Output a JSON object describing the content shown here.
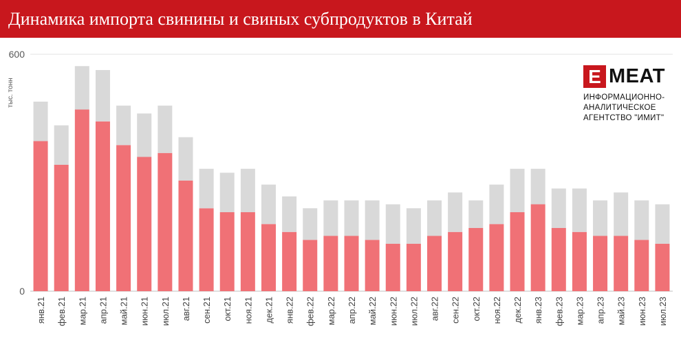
{
  "header": {
    "title": "Динамика импорта свинины и свиных субпродуктов в Китай"
  },
  "logo": {
    "mark": "E",
    "word": "MEAT",
    "lines": [
      "ИНФОРМАЦИОННО-",
      "АНАЛИТИЧЕСКОЕ",
      "АГЕНТСТВО \"ИМИТ\""
    ]
  },
  "colors": {
    "accent": "#c8171d",
    "pork": "#f07176",
    "offal": "#d9d9d9"
  },
  "chart_data": {
    "type": "bar",
    "stacked": true,
    "ylabel": "тыс. тонн",
    "ylim": [
      0,
      600
    ],
    "yticks": [
      0,
      600
    ],
    "grid": true,
    "categories": [
      "янв.21",
      "фев.21",
      "мар.21",
      "апр.21",
      "май.21",
      "июн.21",
      "июл.21",
      "авг.21",
      "сен.21",
      "окт.21",
      "ноя.21",
      "дек.21",
      "янв.22",
      "фев.22",
      "мар.22",
      "апр.22",
      "май.22",
      "июн.22",
      "июл.22",
      "авг.22",
      "сен.22",
      "окт.22",
      "ноя.22",
      "дек.22",
      "янв.23",
      "фев.23",
      "мар.23",
      "апр.23",
      "май.23",
      "июн.23",
      "июл.23"
    ],
    "series": [
      {
        "values": [
          380,
          320,
          460,
          430,
          370,
          340,
          350,
          280,
          210,
          200,
          200,
          170,
          150,
          130,
          140,
          140,
          130,
          120,
          120,
          140,
          150,
          160,
          170,
          200,
          220,
          160,
          150,
          140,
          140,
          130,
          120
        ]
      },
      {
        "values": [
          100,
          100,
          110,
          130,
          100,
          110,
          120,
          110,
          100,
          100,
          110,
          100,
          90,
          80,
          90,
          90,
          100,
          100,
          90,
          90,
          100,
          70,
          100,
          110,
          90,
          100,
          110,
          90,
          110,
          100,
          100
        ]
      }
    ]
  }
}
